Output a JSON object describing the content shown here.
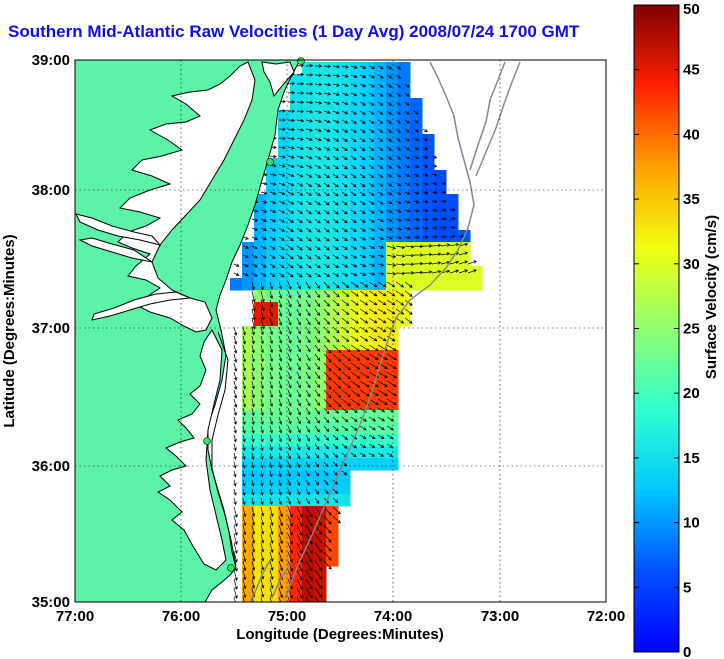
{
  "title": "Southern Mid-Atlantic Raw Velocities (1 Day Avg) 2008/07/24 1700 GMT",
  "x_axis": {
    "label": "Longitude (Degrees:Minutes)",
    "ticks": [
      "77:00",
      "76:00",
      "75:00",
      "74:00",
      "73:00",
      "72:00"
    ]
  },
  "y_axis": {
    "label": "Latitude (Degrees:Minutes)",
    "ticks": [
      "39:00",
      "38:00",
      "37:00",
      "36:00",
      "35:00"
    ]
  },
  "colorbar": {
    "label": "Surface Velocity (cm/s)",
    "ticks": [
      "0",
      "5",
      "10",
      "15",
      "20",
      "25",
      "30",
      "35",
      "40",
      "45",
      "50"
    ],
    "range": [
      0,
      50
    ],
    "colormap": "jet"
  },
  "colors": {
    "title": "#1010e0",
    "land": "#5cf2a8",
    "coastline": "#000000",
    "sites": "#2ee65c",
    "bathymetry": "#888888"
  },
  "map_extent": {
    "lon": [
      -77,
      -72
    ],
    "lat": [
      35,
      39
    ]
  },
  "sites": [
    "site-1",
    "site-2",
    "site-3",
    "site-4"
  ]
}
